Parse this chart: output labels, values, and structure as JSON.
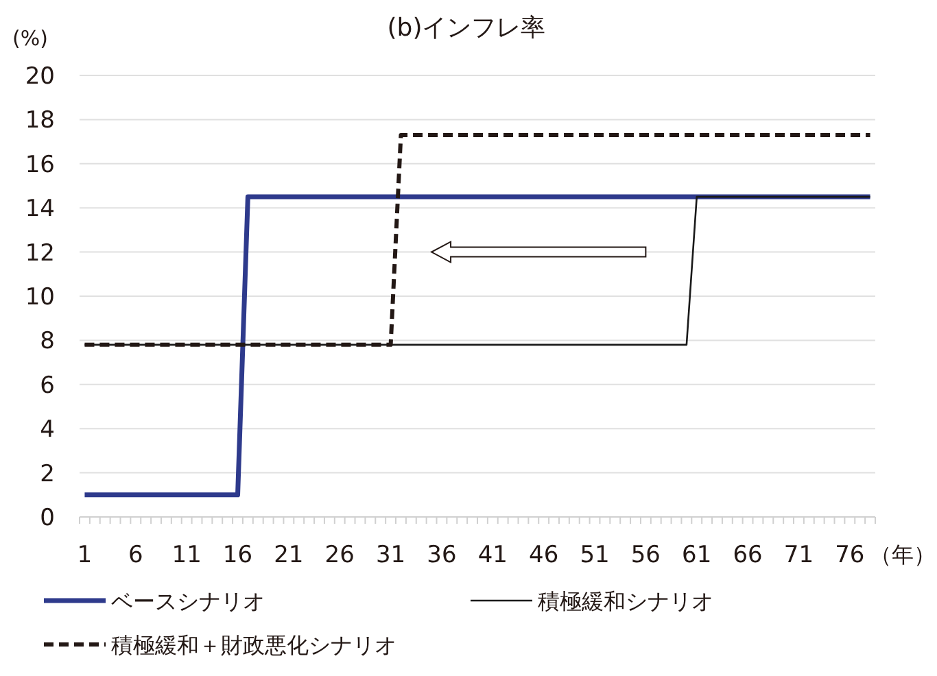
{
  "chart_data": {
    "type": "line",
    "title": "(b)インフレ率",
    "ylabel": "(%)",
    "xlabel": "（年）",
    "categories": [
      "1",
      null,
      null,
      null,
      null,
      "6",
      null,
      null,
      null,
      null,
      "11",
      null,
      null,
      null,
      null,
      "16",
      null,
      null,
      null,
      null,
      "21",
      null,
      null,
      null,
      null,
      "26",
      null,
      null,
      null,
      null,
      "31",
      null,
      null,
      null,
      null,
      "36",
      null,
      null,
      null,
      null,
      "41",
      null,
      null,
      null,
      null,
      "46",
      null,
      null,
      null,
      null,
      "51",
      null,
      null,
      null,
      null,
      "56",
      null,
      null,
      null,
      null,
      "61",
      null,
      null,
      null,
      null,
      "66",
      null,
      null,
      null,
      null,
      "71",
      null,
      null,
      null,
      null,
      "76",
      null,
      null
    ],
    "ylim": [
      0,
      20
    ],
    "yticks": [
      0,
      2,
      4,
      6,
      8,
      10,
      12,
      14,
      16,
      18,
      20
    ],
    "grid": "y",
    "legend": "bottom",
    "series": [
      {
        "name": "ベースシナリオ",
        "color": "#2e3a8c",
        "line_style": "solid",
        "values": [
          1,
          1,
          1,
          1,
          1,
          1,
          1,
          1,
          1,
          1,
          1,
          1,
          1,
          1,
          1,
          1,
          14.5,
          14.5,
          14.5,
          14.5,
          14.5,
          14.5,
          14.5,
          14.5,
          14.5,
          14.5,
          14.5,
          14.5,
          14.5,
          14.5,
          14.5,
          14.5,
          14.5,
          14.5,
          14.5,
          14.5,
          14.5,
          14.5,
          14.5,
          14.5,
          14.5,
          14.5,
          14.5,
          14.5,
          14.5,
          14.5,
          14.5,
          14.5,
          14.5,
          14.5,
          14.5,
          14.5,
          14.5,
          14.5,
          14.5,
          14.5,
          14.5,
          14.5,
          14.5,
          14.5,
          14.5,
          14.5,
          14.5,
          14.5,
          14.5,
          14.5,
          14.5,
          14.5,
          14.5,
          14.5,
          14.5,
          14.5,
          14.5,
          14.5,
          14.5,
          14.5,
          14.5,
          14.5
        ]
      },
      {
        "name": "積極緩和シナリオ",
        "color": "#1a1a1a",
        "line_style": "solid",
        "values": [
          7.8,
          7.8,
          7.8,
          7.8,
          7.8,
          7.8,
          7.8,
          7.8,
          7.8,
          7.8,
          7.8,
          7.8,
          7.8,
          7.8,
          7.8,
          7.8,
          7.8,
          7.8,
          7.8,
          7.8,
          7.8,
          7.8,
          7.8,
          7.8,
          7.8,
          7.8,
          7.8,
          7.8,
          7.8,
          7.8,
          7.8,
          7.8,
          7.8,
          7.8,
          7.8,
          7.8,
          7.8,
          7.8,
          7.8,
          7.8,
          7.8,
          7.8,
          7.8,
          7.8,
          7.8,
          7.8,
          7.8,
          7.8,
          7.8,
          7.8,
          7.8,
          7.8,
          7.8,
          7.8,
          7.8,
          7.8,
          7.8,
          7.8,
          7.8,
          7.8,
          14.5,
          14.5,
          14.5,
          14.5,
          14.5,
          14.5,
          14.5,
          14.5,
          14.5,
          14.5,
          14.5,
          14.5,
          14.5,
          14.5,
          14.5,
          14.5,
          14.5,
          14.5
        ]
      },
      {
        "name": "積極緩和＋財政悪化シナリオ",
        "color": "#231815",
        "line_style": "dashed",
        "values": [
          7.8,
          7.8,
          7.8,
          7.8,
          7.8,
          7.8,
          7.8,
          7.8,
          7.8,
          7.8,
          7.8,
          7.8,
          7.8,
          7.8,
          7.8,
          7.8,
          7.8,
          7.8,
          7.8,
          7.8,
          7.8,
          7.8,
          7.8,
          7.8,
          7.8,
          7.8,
          7.8,
          7.8,
          7.8,
          7.8,
          7.8,
          17.3,
          17.3,
          17.3,
          17.3,
          17.3,
          17.3,
          17.3,
          17.3,
          17.3,
          17.3,
          17.3,
          17.3,
          17.3,
          17.3,
          17.3,
          17.3,
          17.3,
          17.3,
          17.3,
          17.3,
          17.3,
          17.3,
          17.3,
          17.3,
          17.3,
          17.3,
          17.3,
          17.3,
          17.3,
          17.3,
          17.3,
          17.3,
          17.3,
          17.3,
          17.3,
          17.3,
          17.3,
          17.3,
          17.3,
          17.3,
          17.3,
          17.3,
          17.3,
          17.3,
          17.3,
          17.3,
          17.3
        ]
      }
    ]
  }
}
